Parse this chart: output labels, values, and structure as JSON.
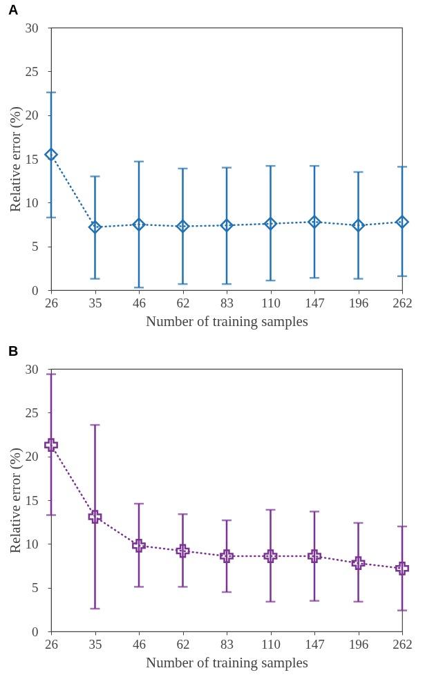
{
  "chart_data": [
    {
      "type": "line",
      "title": "A",
      "xlabel": "Number of training samples",
      "ylabel": "Relative error (%)",
      "categories": [
        "26",
        "35",
        "46",
        "62",
        "83",
        "110",
        "147",
        "196",
        "262"
      ],
      "series": [
        {
          "color": "#2171b5",
          "values": [
            15.5,
            7.2,
            7.5,
            7.3,
            7.4,
            7.6,
            7.8,
            7.4,
            7.8
          ],
          "errors": [
            [
              8.3,
              22.6
            ],
            [
              1.3,
              13.0
            ],
            [
              0.3,
              14.7
            ],
            [
              0.7,
              13.9
            ],
            [
              0.7,
              14.0
            ],
            [
              1.1,
              14.2
            ],
            [
              1.4,
              14.2
            ],
            [
              1.3,
              13.5
            ],
            [
              1.6,
              14.1
            ]
          ]
        }
      ],
      "ylim": [
        0,
        30
      ],
      "yticks": [
        0,
        5,
        10,
        15,
        20,
        25,
        30
      ],
      "marker": "diamond",
      "line_style": "dotted",
      "grid": false
    },
    {
      "type": "line",
      "title": "B",
      "xlabel": "Number of training samples",
      "ylabel": "Relative error (%)",
      "categories": [
        "26",
        "35",
        "46",
        "62",
        "83",
        "110",
        "147",
        "196",
        "262"
      ],
      "series": [
        {
          "color": "#7b3294",
          "values": [
            21.3,
            13.1,
            9.8,
            9.2,
            8.6,
            8.6,
            8.6,
            7.8,
            7.2
          ],
          "errors": [
            [
              13.3,
              29.4
            ],
            [
              2.6,
              23.6
            ],
            [
              5.1,
              14.6
            ],
            [
              5.1,
              13.4
            ],
            [
              4.5,
              12.7
            ],
            [
              3.4,
              13.9
            ],
            [
              3.5,
              13.7
            ],
            [
              3.4,
              12.4
            ],
            [
              2.4,
              12.0
            ]
          ]
        }
      ],
      "ylim": [
        0,
        30
      ],
      "yticks": [
        0,
        5,
        10,
        15,
        20,
        25,
        30
      ],
      "marker": "cross",
      "line_style": "dotted",
      "grid": false
    }
  ]
}
